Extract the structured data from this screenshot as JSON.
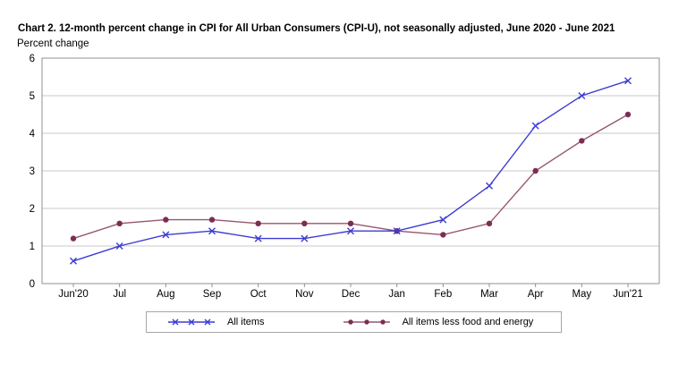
{
  "chart_data": {
    "type": "line",
    "title": "Chart 2. 12-month percent change in CPI for All Urban Consumers (CPI-U), not seasonally adjusted, June 2020 - June 2021",
    "ylabel": "Percent change",
    "xlabel": "",
    "categories": [
      "Jun'20",
      "Jul",
      "Aug",
      "Sep",
      "Oct",
      "Nov",
      "Dec",
      "Jan",
      "Feb",
      "Mar",
      "Apr",
      "May",
      "Jun'21"
    ],
    "series": [
      {
        "name": "All items",
        "marker": "x",
        "color": "#3c3cd2",
        "marker_color": "#3c3cd2",
        "values": [
          0.6,
          1.0,
          1.3,
          1.4,
          1.2,
          1.2,
          1.4,
          1.4,
          1.7,
          2.6,
          4.2,
          5.0,
          5.4
        ]
      },
      {
        "name": "All items less food and energy",
        "marker": "circle",
        "color": "#97566e",
        "marker_color": "#7c2d53",
        "values": [
          1.2,
          1.6,
          1.7,
          1.7,
          1.6,
          1.6,
          1.6,
          1.4,
          1.3,
          1.6,
          3.0,
          3.8,
          4.5
        ]
      }
    ],
    "ylim": [
      0,
      6
    ],
    "yticks": [
      0,
      1,
      2,
      3,
      4,
      5,
      6
    ],
    "grid": true,
    "legend_position": "bottom",
    "colors": {
      "grid": "#c8c8c8",
      "border": "#909090",
      "tick": "#909090",
      "text": "#000000",
      "background": "#ffffff"
    }
  }
}
